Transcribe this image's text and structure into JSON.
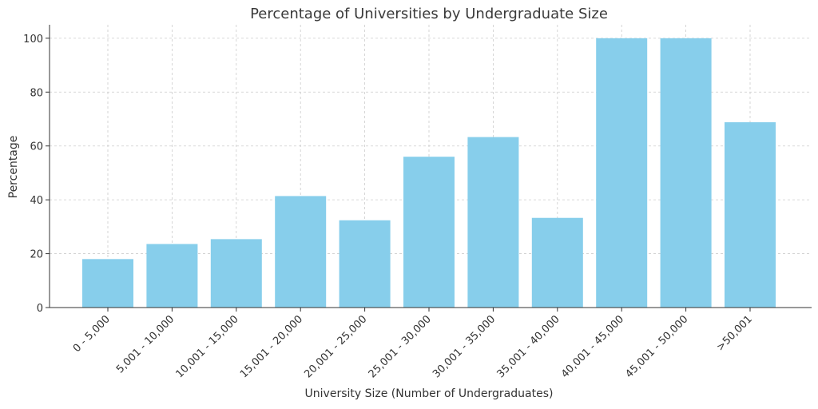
{
  "chart_data": {
    "type": "bar",
    "title": "Percentage of Universities by Undergraduate Size",
    "xlabel": "University Size (Number of Undergraduates)",
    "ylabel": "Percentage",
    "categories": [
      "0 - 5,000",
      "5,001 - 10,000",
      "10,001 - 15,000",
      "15,001 - 20,000",
      "20,001 - 25,000",
      "25,001 - 30,000",
      "30,001 - 35,000",
      "35,001 - 40,000",
      "40,001 - 45,000",
      "45,001 - 50,000",
      ">50,001"
    ],
    "values": [
      18.0,
      23.6,
      25.4,
      41.4,
      32.4,
      56.0,
      63.3,
      33.3,
      100.0,
      100.0,
      68.8
    ],
    "ylim": [
      0,
      105
    ],
    "yticks": [
      0,
      20,
      40,
      60,
      80,
      100
    ],
    "grid": true,
    "bar_color": "#87CEEB"
  }
}
